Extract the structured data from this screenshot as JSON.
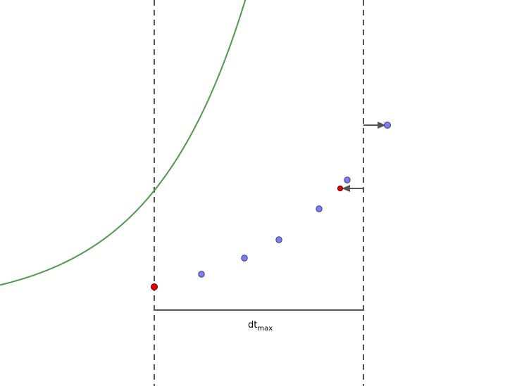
{
  "diagram": {
    "label": {
      "main": "dt",
      "subscript": "max"
    },
    "colors": {
      "background": "#ffffff",
      "curve": "#4e9a4a",
      "boundary_line": "#555555",
      "span_line": "#555555",
      "arrow": "#555555",
      "sample_point_fill": "#7b7ff0",
      "sample_point_stroke": "#3a3a8a",
      "highlight_point_fill": "#e00000",
      "highlight_point_stroke": "#600000"
    },
    "styles": {
      "boundary_lines": "dashed",
      "curve_shape": "exponential"
    },
    "elements": [
      "exponential-curve",
      "left-boundary-line",
      "right-boundary-line",
      "dt-max-span",
      "sample-points",
      "highlight-points",
      "arrows"
    ]
  }
}
